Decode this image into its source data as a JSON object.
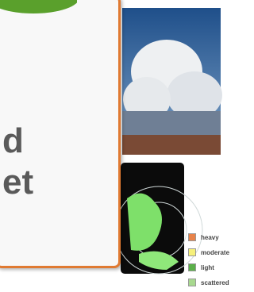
{
  "card": {
    "lines": [
      "d",
      "et"
    ]
  },
  "legend": [
    {
      "label": "heavy",
      "color": "#e8834a"
    },
    {
      "label": "moderate",
      "color": "#f6f07a"
    },
    {
      "label": "light",
      "color": "#5bb04a"
    },
    {
      "label": "scattered",
      "color": "#a8d98f"
    }
  ]
}
